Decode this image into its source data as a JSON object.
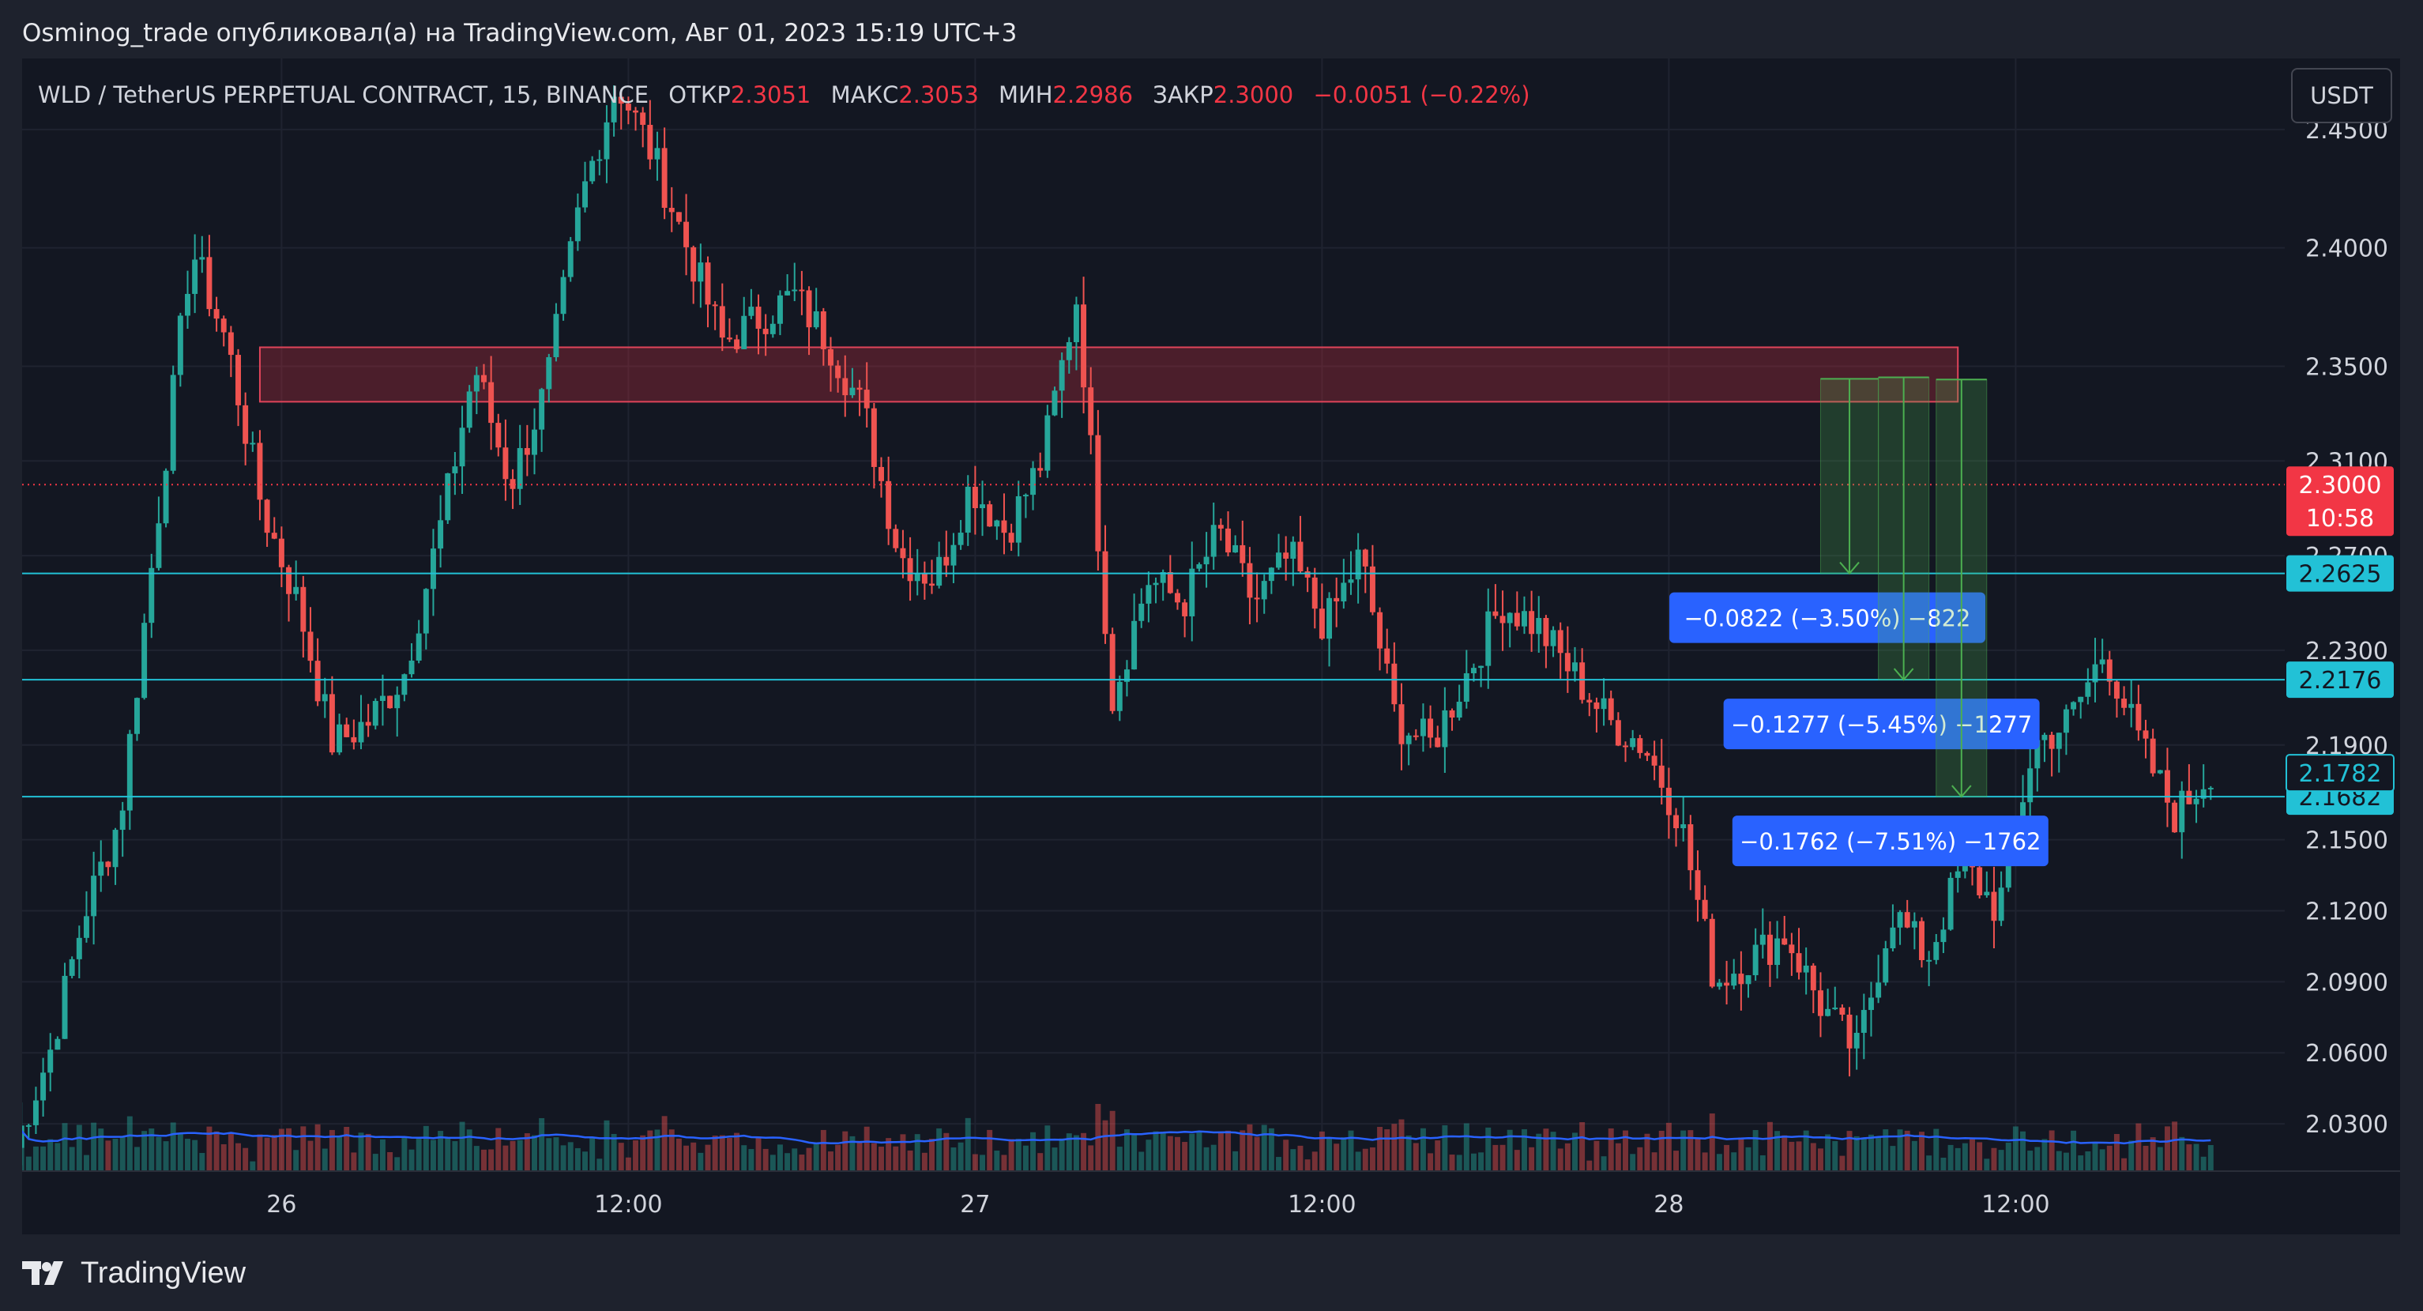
{
  "caption": "Osminog_trade опубликовал(а) на TradingView.com, Авг 01, 2023 15:19 UTC+3",
  "legend": {
    "symbol": "WLD / TetherUS PERPETUAL CONTRACT, 15, BINANCE",
    "open_label": "ОТКР",
    "open": "2.3051",
    "high_label": "МАКС",
    "high": "2.3053",
    "low_label": "МИН",
    "low": "2.2986",
    "close_label": "ЗАКР",
    "close": "2.3000",
    "change": "−0.0051 (−0.22%)"
  },
  "currency_button": "USDT",
  "footer": {
    "brand": "TradingView"
  },
  "colors": {
    "up": "#26a69a",
    "down": "#ef5350",
    "line": "#22c1d6",
    "ma": "#2962ff",
    "zone": "#c3303f",
    "badge": "#2962ff"
  },
  "chart_data": {
    "type": "candlestick",
    "interval": "15",
    "x_range": [
      "Jul 25 15:00",
      "Jul 28 19:00"
    ],
    "xtick_labels": [
      "26",
      "12:00",
      "27",
      "12:00",
      "28",
      "12:00"
    ],
    "ylim": [
      2.01,
      2.48
    ],
    "ytick_labels": [
      "2.4500",
      "2.4000",
      "2.3500",
      "2.3100",
      "2.2700",
      "2.2300",
      "2.1900",
      "2.1500",
      "2.1200",
      "2.0900",
      "2.0600",
      "2.0300"
    ],
    "last_price": "2.3000",
    "countdown": "10:58",
    "horizontal_levels": [
      "2.2625",
      "2.2176",
      "2.1682"
    ],
    "current_value_label": "2.1782",
    "resistance_zone": {
      "from_time": "Jul 25 23:30",
      "to_time": "Jul 28 10:15",
      "low": 2.335,
      "high": 2.358
    },
    "measurements": [
      {
        "label": "−0.0822 (−3.50%) −822",
        "from": 2.3447,
        "to": 2.2625,
        "start_time": "Jul 28 05:30",
        "end_time": "Jul 28 07:30"
      },
      {
        "label": "−0.1277 (−5.45%) −1277",
        "from": 2.3453,
        "to": 2.2176,
        "start_time": "Jul 28 07:30",
        "end_time": "Jul 28 09:15"
      },
      {
        "label": "−0.1762 (−7.51%) −1762",
        "from": 2.3444,
        "to": 2.1682,
        "start_time": "Jul 28 09:30",
        "end_time": "Jul 28 11:15"
      }
    ],
    "candle_close_path": [
      2.02,
      2.06,
      2.12,
      2.16,
      2.28,
      2.4,
      2.36,
      2.29,
      2.25,
      2.19,
      2.2,
      2.22,
      2.28,
      2.35,
      2.3,
      2.34,
      2.42,
      2.47,
      2.44,
      2.4,
      2.36,
      2.37,
      2.38,
      2.36,
      2.33,
      2.27,
      2.26,
      2.3,
      2.28,
      2.31,
      2.38,
      2.21,
      2.26,
      2.25,
      2.28,
      2.25,
      2.27,
      2.24,
      2.27,
      2.2,
      2.19,
      2.22,
      2.25,
      2.24,
      2.22,
      2.2,
      2.19,
      2.16,
      2.09,
      2.1,
      2.11,
      2.08,
      2.06,
      2.12,
      2.1,
      2.14,
      2.12,
      2.19,
      2.2,
      2.23,
      2.19,
      2.16,
      2.18
    ]
  }
}
